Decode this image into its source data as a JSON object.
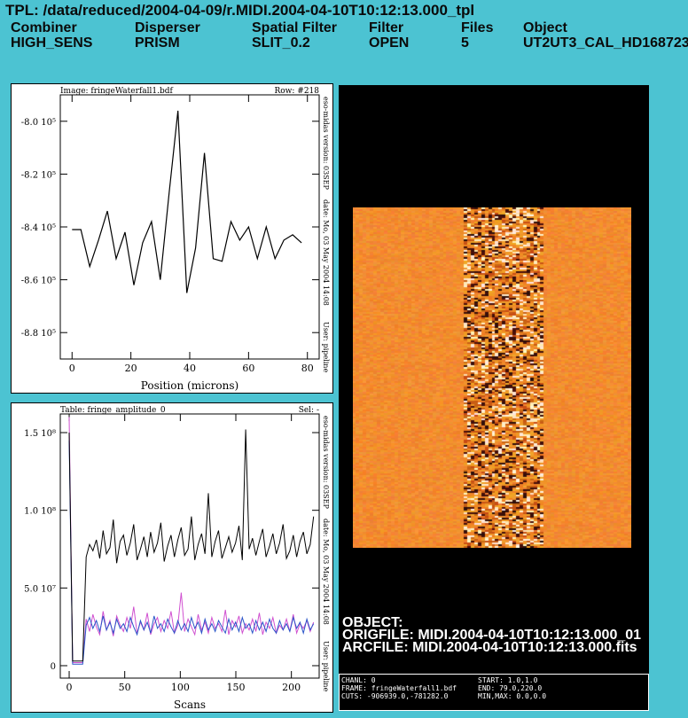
{
  "tpl_path": "TPL: /data/reduced/2004-04-09/r.MIDI.2004-04-10T10:12:13.000_tpl",
  "header": {
    "combiner": {
      "label": "Combiner",
      "value": "HIGH_SENS"
    },
    "disperser": {
      "label": "Disperser",
      "value": "PRISM"
    },
    "spatial_filter": {
      "label": "Spatial Filter",
      "value": "SLIT_0.2"
    },
    "filter": {
      "label": "Filter",
      "value": "OPEN"
    },
    "files": {
      "label": "Files",
      "value": "5"
    },
    "object": {
      "label": "Object",
      "value": "UT2UT3_CAL_HD168723"
    }
  },
  "plot_top": {
    "image_label": "Image: fringeWaterfall1.bdf",
    "row_label": "Row: #218",
    "xlabel": "Position (microns)",
    "side_text": [
      "eso-midas version: 03SEP",
      "date: Mo, 03 May 2004 14:08",
      "User: pipeline"
    ],
    "ytick_labels": [
      "-8.0 10⁵",
      "-8.2 10⁵",
      "-8.4 10⁵",
      "-8.6 10⁵",
      "-8.8 10⁵"
    ],
    "xtick_labels": [
      "0",
      "20",
      "40",
      "60",
      "80"
    ]
  },
  "plot_bottom": {
    "table_label": "Table: fringe_amplitude_0",
    "sel_label": "Sel: -",
    "xlabel": "Scans",
    "side_text": [
      "eso-midas version: 03SEP",
      "date: Mo, 03 May 2004 14:08",
      "User: pipeline"
    ],
    "ytick_labels": [
      "1.5 10⁸",
      "1.0 10⁸",
      "5.0 10⁷",
      "0"
    ],
    "xtick_labels": [
      "0",
      "50",
      "100",
      "150",
      "200"
    ]
  },
  "image_display": {
    "object_line": "OBJECT:",
    "origfile_line": "ORIGFILE: MIDI.2004-04-10T10:12:13.000_01",
    "arcfile_line": "ARCFILE: MIDI.2004-04-10T10:12:13.000.fits"
  },
  "status_bar": {
    "chanl": "CHANL: 0",
    "frame": "FRAME: fringeWaterfall1.bdf",
    "cuts": "CUTS: -906939.0,-781282.0",
    "start": "START: 1.0,1.0",
    "end": "END: 79.0,220.0",
    "minmax": "MIN,MAX: 0.0,0.0"
  },
  "colors": {
    "background": "#4cc3d2",
    "waterfall_base": "#f08a2a",
    "series_black": "#000000",
    "series_blue": "#2a55c8",
    "series_magenta": "#d050d0"
  },
  "chart_data": [
    {
      "type": "line",
      "title": "Image: fringeWaterfall1.bdf",
      "xlabel": "Position (microns)",
      "ylabel": "",
      "xlim": [
        -4,
        84
      ],
      "ylim": [
        -890000,
        -790000
      ],
      "x": [
        0,
        3,
        6,
        9,
        12,
        15,
        18,
        21,
        24,
        27,
        30,
        33,
        36,
        39,
        42,
        45,
        48,
        51,
        54,
        57,
        60,
        63,
        66,
        69,
        72,
        75,
        78
      ],
      "series": [
        {
          "values": [
            -841000,
            -841000,
            -855000,
            -845000,
            -834000,
            -852000,
            -842000,
            -862000,
            -846000,
            -838000,
            -860000,
            -827000,
            -796000,
            -865000,
            -848000,
            -812000,
            -852000,
            -853000,
            -838000,
            -845000,
            -840000,
            -852000,
            -840000,
            -852000,
            -845000,
            -843000,
            -846000
          ]
        }
      ]
    },
    {
      "type": "line",
      "title": "Table: fringe_amplitude_0",
      "xlabel": "Scans",
      "ylabel": "",
      "xlim": [
        -8,
        225
      ],
      "ylim": [
        -8000000,
        162000000
      ],
      "series": [
        {
          "values": [
            150000000,
            3000000,
            3000000,
            3000000,
            3000000,
            70000000,
            78000000,
            74000000,
            81000000,
            69000000,
            87000000,
            72000000,
            76000000,
            94000000,
            66000000,
            80000000,
            84000000,
            71000000,
            79000000,
            91000000,
            68000000,
            75000000,
            83000000,
            70000000,
            86000000,
            73000000,
            79000000,
            92000000,
            67000000,
            77000000,
            84000000,
            70000000,
            81000000,
            89000000,
            71000000,
            75000000,
            96000000,
            68000000,
            78000000,
            85000000,
            72000000,
            111000000,
            70000000,
            80000000,
            87000000,
            69000000,
            76000000,
            83000000,
            73000000,
            79000000,
            90000000,
            68000000,
            152000000,
            75000000,
            82000000,
            71000000,
            80000000,
            88000000,
            70000000,
            77000000,
            85000000,
            72000000,
            79000000,
            91000000,
            69000000,
            74000000,
            84000000,
            70000000,
            80000000,
            86000000,
            72000000,
            78000000,
            96000000
          ]
        },
        {
          "values": [
            145000000,
            1000000,
            1000000,
            1000000,
            1000000,
            26000000,
            31000000,
            24000000,
            29000000,
            22000000,
            32000000,
            23000000,
            28000000,
            21000000,
            30000000,
            24000000,
            27000000,
            22000000,
            31000000,
            25000000,
            20000000,
            29000000,
            23000000,
            28000000,
            21000000,
            32000000,
            24000000,
            27000000,
            22000000,
            30000000,
            25000000,
            21000000,
            29000000,
            23000000,
            27000000,
            22000000,
            31000000,
            24000000,
            28000000,
            21000000,
            30000000,
            23000000,
            27000000,
            22000000,
            29000000,
            25000000,
            21000000,
            30000000,
            23000000,
            28000000,
            22000000,
            31000000,
            24000000,
            27000000,
            21000000,
            29000000,
            23000000,
            28000000,
            22000000,
            30000000,
            24000000,
            21000000,
            29000000,
            23000000,
            27000000,
            22000000,
            31000000,
            24000000,
            28000000,
            21000000,
            30000000,
            23000000,
            27000000
          ]
        },
        {
          "values": [
            160000000,
            2000000,
            2000000,
            2000000,
            2000000,
            30000000,
            22000000,
            33000000,
            25000000,
            20000000,
            35000000,
            23000000,
            29000000,
            19000000,
            32000000,
            26000000,
            22000000,
            31000000,
            24000000,
            38000000,
            21000000,
            28000000,
            23000000,
            34000000,
            20000000,
            27000000,
            31000000,
            22000000,
            29000000,
            24000000,
            35000000,
            21000000,
            26000000,
            47000000,
            22000000,
            30000000,
            25000000,
            20000000,
            33000000,
            23000000,
            28000000,
            21000000,
            31000000,
            24000000,
            27000000,
            22000000,
            36000000,
            20000000,
            29000000,
            25000000,
            32000000,
            21000000,
            27000000,
            23000000,
            30000000,
            22000000,
            34000000,
            20000000,
            28000000,
            24000000,
            31000000,
            21000000,
            26000000,
            23000000,
            30000000,
            22000000,
            33000000,
            21000000,
            27000000,
            24000000,
            29000000,
            22000000,
            28000000
          ]
        }
      ]
    }
  ]
}
